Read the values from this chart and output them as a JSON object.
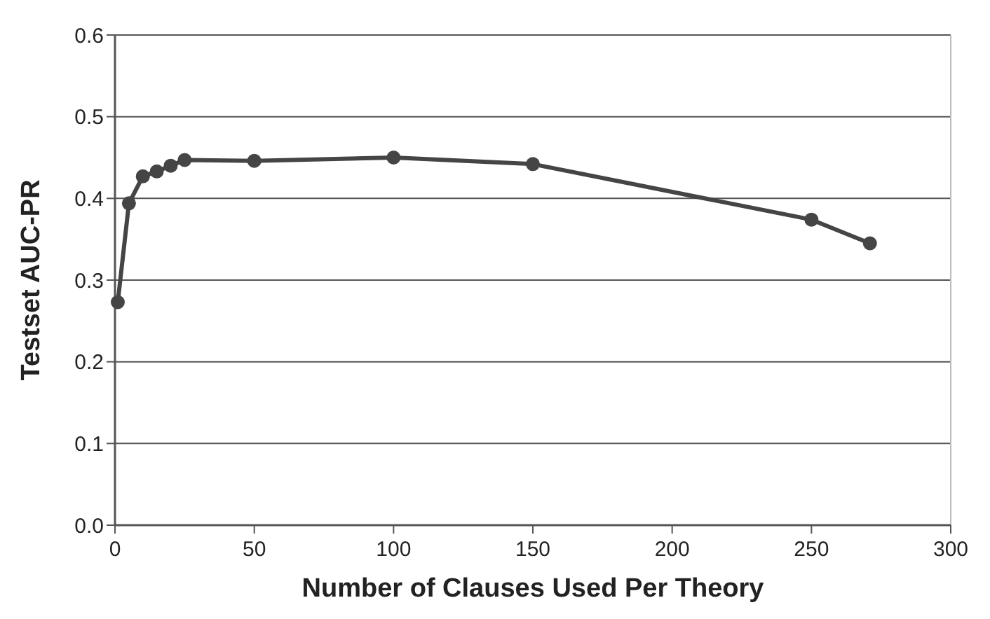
{
  "chart_data": {
    "type": "line",
    "xlabel": "Number of Clauses Used Per Theory",
    "ylabel": "Testset AUC-PR",
    "x": [
      1,
      5,
      10,
      15,
      20,
      25,
      50,
      100,
      150,
      250,
      271
    ],
    "series": [
      {
        "color": "#454545",
        "values": [
          0.273,
          0.394,
          0.427,
          0.433,
          0.44,
          0.447,
          0.446,
          0.45,
          0.442,
          0.374,
          0.345
        ]
      }
    ],
    "xlim": [
      0,
      300
    ],
    "xticks": [
      0,
      50,
      100,
      150,
      200,
      250,
      300
    ],
    "ylim": [
      0,
      0.6
    ],
    "yticks": [
      {
        "value": 0,
        "label": "0.0"
      },
      {
        "value": 0.1,
        "label": "0.1"
      },
      {
        "value": 0.2,
        "label": "0.2"
      },
      {
        "value": 0.3,
        "label": "0.3"
      },
      {
        "value": 0.4,
        "label": "0.4"
      },
      {
        "value": 0.5,
        "label": "0.5"
      },
      {
        "value": 0.6,
        "label": "0.6"
      }
    ],
    "grid": "y",
    "marker": "circle",
    "line_style": "solid"
  }
}
